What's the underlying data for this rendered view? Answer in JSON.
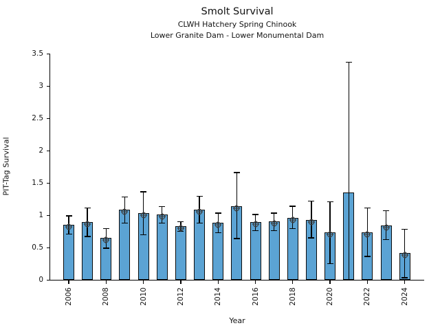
{
  "chart_data": {
    "type": "bar",
    "title": "Smolt Survival",
    "subtitle": [
      "CLWH Hatchery Spring Chinook",
      "Lower Granite Dam - Lower Monumental Dam"
    ],
    "xlabel": "Year",
    "ylabel": "PIT-Tag Survival",
    "ylim": [
      0,
      3.5
    ],
    "grid": false,
    "legend_position": "none",
    "bar_color": "#5BA3D4",
    "bar_edge_color": "#0a0a0a",
    "error_color": "#000000",
    "marker_style": "circle-plus",
    "yticks": [
      {
        "v": 0.0,
        "label": "0"
      },
      {
        "v": 0.5,
        "label": "0.5"
      },
      {
        "v": 1.0,
        "label": "1"
      },
      {
        "v": 1.5,
        "label": "1.5"
      },
      {
        "v": 2.0,
        "label": "2"
      },
      {
        "v": 2.5,
        "label": "2.5"
      },
      {
        "v": 3.0,
        "label": "3"
      },
      {
        "v": 3.5,
        "label": "3.5"
      }
    ],
    "xticks": [
      "2006",
      "2008",
      "2010",
      "2012",
      "2014",
      "2016",
      "2018",
      "2020",
      "2022",
      "2024"
    ],
    "series": [
      {
        "name": "PIT-Tag Survival (Lower Granite Dam - Lower Monumental Dam)",
        "points": [
          {
            "year": 2006,
            "value": 0.85,
            "ci_low": 0.71,
            "ci_high": 0.99,
            "marker": true
          },
          {
            "year": 2007,
            "value": 0.89,
            "ci_low": 0.67,
            "ci_high": 1.11,
            "marker": true
          },
          {
            "year": 2008,
            "value": 0.65,
            "ci_low": 0.49,
            "ci_high": 0.79,
            "marker": true
          },
          {
            "year": 2009,
            "value": 1.08,
            "ci_low": 0.88,
            "ci_high": 1.28,
            "marker": true
          },
          {
            "year": 2010,
            "value": 1.03,
            "ci_low": 0.7,
            "ci_high": 1.36,
            "marker": true
          },
          {
            "year": 2011,
            "value": 1.01,
            "ci_low": 0.88,
            "ci_high": 1.13,
            "marker": true
          },
          {
            "year": 2012,
            "value": 0.83,
            "ci_low": 0.75,
            "ci_high": 0.9,
            "marker": true
          },
          {
            "year": 2013,
            "value": 1.08,
            "ci_low": 0.88,
            "ci_high": 1.29,
            "marker": true
          },
          {
            "year": 2014,
            "value": 0.88,
            "ci_low": 0.73,
            "ci_high": 1.03,
            "marker": true
          },
          {
            "year": 2015,
            "value": 1.14,
            "ci_low": 0.64,
            "ci_high": 1.66,
            "marker": true
          },
          {
            "year": 2016,
            "value": 0.89,
            "ci_low": 0.76,
            "ci_high": 1.01,
            "marker": true
          },
          {
            "year": 2017,
            "value": 0.9,
            "ci_low": 0.76,
            "ci_high": 1.03,
            "marker": true
          },
          {
            "year": 2018,
            "value": 0.96,
            "ci_low": 0.79,
            "ci_high": 1.14,
            "marker": true
          },
          {
            "year": 2019,
            "value": 0.93,
            "ci_low": 0.65,
            "ci_high": 1.22,
            "marker": true
          },
          {
            "year": 2020,
            "value": 0.73,
            "ci_low": 0.25,
            "ci_high": 1.21,
            "marker": true
          },
          {
            "year": 2021,
            "value": 1.35,
            "ci_low": 0.0,
            "ci_high": 3.37,
            "marker": false
          },
          {
            "year": 2022,
            "value": 0.73,
            "ci_low": 0.36,
            "ci_high": 1.11,
            "marker": true
          },
          {
            "year": 2023,
            "value": 0.84,
            "ci_low": 0.62,
            "ci_high": 1.07,
            "marker": true
          },
          {
            "year": 2024,
            "value": 0.41,
            "ci_low": 0.03,
            "ci_high": 0.78,
            "marker": true
          }
        ]
      }
    ]
  }
}
